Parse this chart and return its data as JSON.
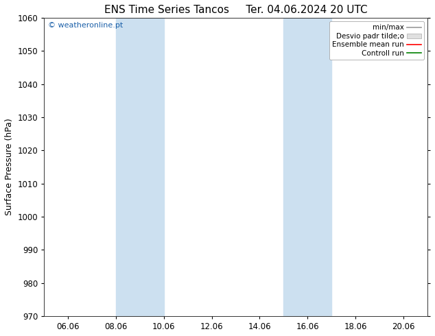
{
  "title_left": "ENS Time Series Tancos",
  "title_right": "Ter. 04.06.2024 20 UTC",
  "ylabel": "Surface Pressure (hPa)",
  "ylim": [
    970,
    1060
  ],
  "yticks": [
    970,
    980,
    990,
    1000,
    1010,
    1020,
    1030,
    1040,
    1050,
    1060
  ],
  "xtick_positions": [
    6,
    8,
    10,
    12,
    14,
    16,
    18,
    20
  ],
  "xtick_labels": [
    "06.06",
    "08.06",
    "10.06",
    "12.06",
    "14.06",
    "16.06",
    "18.06",
    "20.06"
  ],
  "xlim": [
    5.0,
    21.0
  ],
  "shaded_regions": [
    {
      "xmin": 8.0,
      "xmax": 10.0
    },
    {
      "xmin": 15.0,
      "xmax": 17.0
    }
  ],
  "shaded_color": "#cce0f0",
  "watermark": "© weatheronline.pt",
  "watermark_color": "#1a5fa8",
  "legend_items": [
    {
      "label": "min/max",
      "color": "#999999",
      "linestyle": "-",
      "type": "line"
    },
    {
      "label": "Desvio padr tilde;o",
      "color": "#cccccc",
      "linestyle": "-",
      "type": "patch"
    },
    {
      "label": "Ensemble mean run",
      "color": "red",
      "linestyle": "-",
      "type": "line"
    },
    {
      "label": "Controll run",
      "color": "green",
      "linestyle": "-",
      "type": "line"
    }
  ],
  "grid_color": "#dddddd",
  "background_color": "#ffffff",
  "title_fontsize": 11,
  "tick_fontsize": 8.5,
  "ylabel_fontsize": 9,
  "legend_fontsize": 7.5
}
